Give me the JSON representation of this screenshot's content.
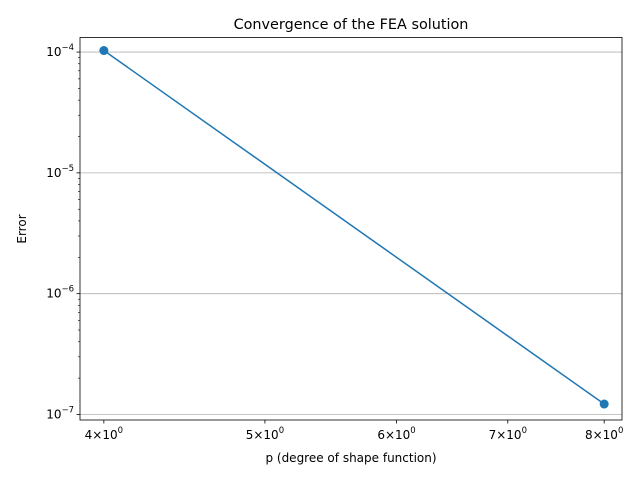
{
  "chart_data": {
    "type": "line",
    "title": "Convergence of the FEA solution",
    "xlabel": "p (degree of shape function)",
    "ylabel": "Error",
    "x_scale": "log",
    "y_scale": "log",
    "xlim": [
      3.87,
      8.2
    ],
    "ylim": [
      9e-08,
      0.000132
    ],
    "grid": "y-major",
    "legend": "none",
    "x_ticks": [
      {
        "value": 4,
        "base": "4",
        "exp": "0"
      },
      {
        "value": 5,
        "base": "5",
        "exp": "0"
      },
      {
        "value": 6,
        "base": "6",
        "exp": "0"
      },
      {
        "value": 7,
        "base": "7",
        "exp": "0"
      },
      {
        "value": 8,
        "base": "8",
        "exp": "0"
      }
    ],
    "y_ticks": [
      {
        "value": 0.0001,
        "base": "10",
        "exp": "−4"
      },
      {
        "value": 1e-05,
        "base": "10",
        "exp": "−5"
      },
      {
        "value": 1e-06,
        "base": "10",
        "exp": "−6"
      },
      {
        "value": 1e-07,
        "base": "10",
        "exp": "−7"
      }
    ],
    "series": [
      {
        "x": [
          4,
          8
        ],
        "y": [
          0.000103,
          1.22e-07
        ],
        "color": "#1f77b4",
        "marker": "circle"
      }
    ]
  }
}
